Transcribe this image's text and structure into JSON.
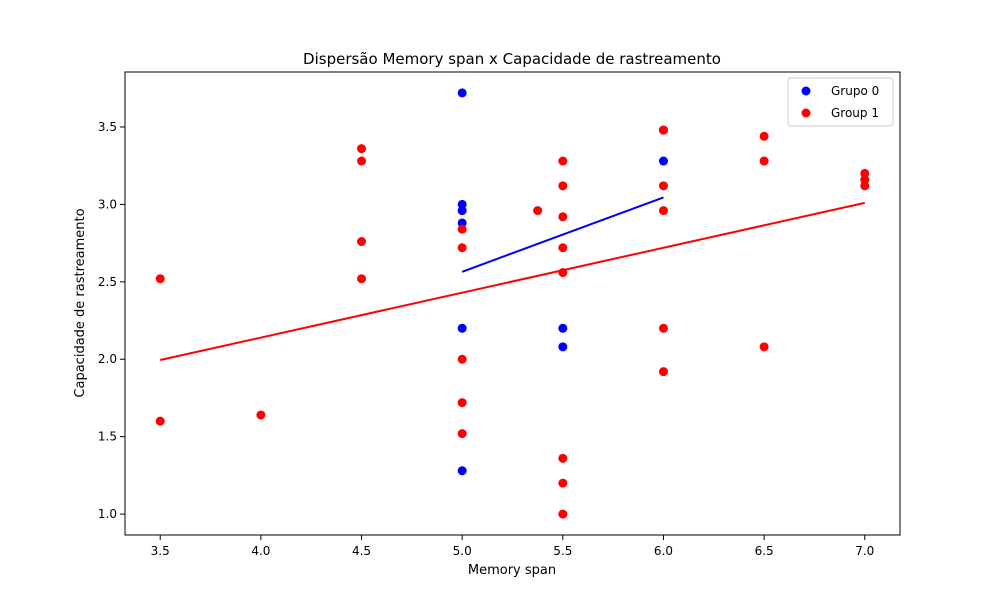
{
  "chart_data": {
    "type": "scatter",
    "title": "Dispersão Memory span x Capacidade de rastreamento",
    "xlabel": "Memory span",
    "ylabel": "Capacidade de rastreamento",
    "xlim": [
      3.325,
      7.175
    ],
    "ylim": [
      0.865,
      3.855
    ],
    "xticks": [
      3.5,
      4.0,
      4.5,
      5.0,
      5.5,
      6.0,
      6.5,
      7.0
    ],
    "yticks": [
      1.0,
      1.5,
      2.0,
      2.5,
      3.0,
      3.5
    ],
    "xtick_labels": [
      "3.5",
      "4.0",
      "4.5",
      "5.0",
      "5.5",
      "6.0",
      "6.5",
      "7.0"
    ],
    "ytick_labels": [
      "1.0",
      "1.5",
      "2.0",
      "2.5",
      "3.0",
      "3.5"
    ],
    "grid": false,
    "legend_position": "top-right",
    "series": [
      {
        "name": "Grupo 0",
        "color": "#0000ff",
        "points": [
          [
            5.0,
            3.72
          ],
          [
            5.0,
            3.0
          ],
          [
            5.0,
            2.96
          ],
          [
            5.0,
            2.88
          ],
          [
            5.0,
            2.2
          ],
          [
            5.0,
            1.28
          ],
          [
            5.5,
            2.2
          ],
          [
            5.5,
            2.08
          ],
          [
            6.0,
            3.48
          ],
          [
            6.0,
            3.28
          ]
        ],
        "trend": [
          [
            5.0,
            2.565
          ],
          [
            6.0,
            3.045
          ]
        ]
      },
      {
        "name": "Group 1",
        "color": "#ff0000",
        "points": [
          [
            3.5,
            2.52
          ],
          [
            3.5,
            1.6
          ],
          [
            4.0,
            1.64
          ],
          [
            4.5,
            3.36
          ],
          [
            4.5,
            3.28
          ],
          [
            4.5,
            2.76
          ],
          [
            4.5,
            2.52
          ],
          [
            5.0,
            2.84
          ],
          [
            5.0,
            2.72
          ],
          [
            5.0,
            2.0
          ],
          [
            5.0,
            1.72
          ],
          [
            5.0,
            1.52
          ],
          [
            5.375,
            2.96
          ],
          [
            5.5,
            3.28
          ],
          [
            5.5,
            3.12
          ],
          [
            5.5,
            2.92
          ],
          [
            5.5,
            2.72
          ],
          [
            5.5,
            2.56
          ],
          [
            5.5,
            1.36
          ],
          [
            5.5,
            1.2
          ],
          [
            5.5,
            1.0
          ],
          [
            6.0,
            3.48
          ],
          [
            6.0,
            3.12
          ],
          [
            6.0,
            2.96
          ],
          [
            6.0,
            2.2
          ],
          [
            6.0,
            1.92
          ],
          [
            6.5,
            3.44
          ],
          [
            6.5,
            3.28
          ],
          [
            6.5,
            2.08
          ],
          [
            7.0,
            3.2
          ],
          [
            7.0,
            3.16
          ],
          [
            7.0,
            3.12
          ]
        ],
        "trend": [
          [
            3.5,
            1.995
          ],
          [
            7.0,
            3.01
          ]
        ]
      }
    ]
  }
}
